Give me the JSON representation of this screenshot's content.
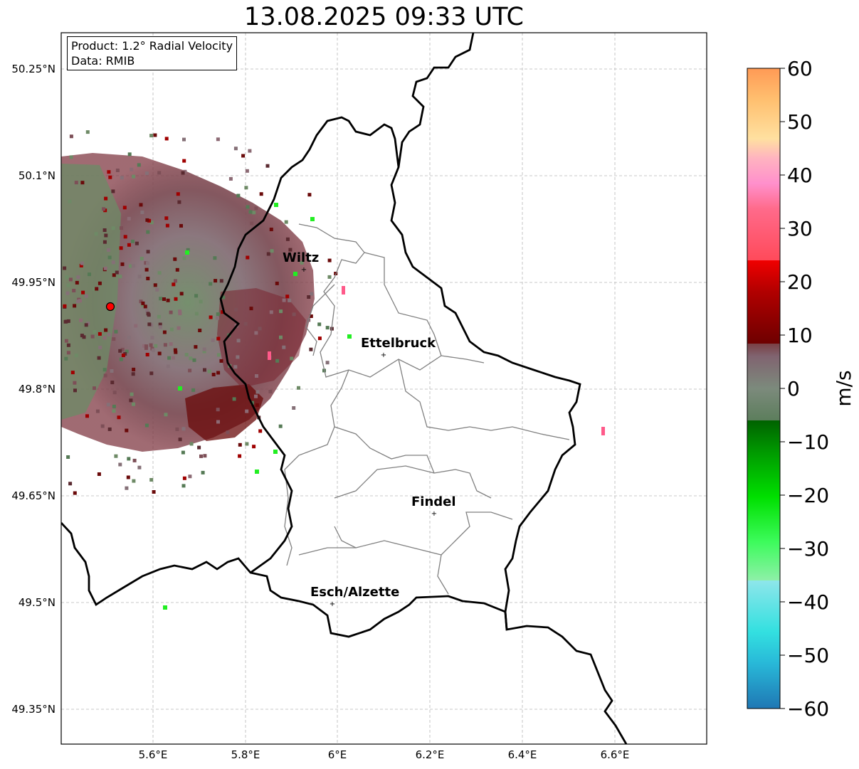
{
  "map": {
    "title": "13.08.2025 09:33 UTC",
    "info": {
      "product": "Product: 1.2° Radial Velocity",
      "data": "Data: RMIB"
    },
    "lat_ticks": [
      "50.25°N",
      "50.1°N",
      "49.95°N",
      "49.8°N",
      "49.65°N",
      "49.5°N",
      "49.35°N"
    ],
    "lon_ticks": [
      "5.6°E",
      "5.8°E",
      "6°E",
      "6.2°E",
      "6.4°E",
      "6.6°E"
    ],
    "cities": [
      {
        "name": "Wiltz"
      },
      {
        "name": "Ettelbruck"
      },
      {
        "name": "Findel"
      },
      {
        "name": "Esch/Alzette"
      }
    ],
    "colorbar": {
      "unit": "m/s",
      "ticks": [
        "60",
        "50",
        "40",
        "30",
        "20",
        "10",
        "0",
        "−10",
        "−20",
        "−30",
        "−40",
        "−50",
        "−60"
      ],
      "min": -60,
      "max": 60
    }
  }
}
